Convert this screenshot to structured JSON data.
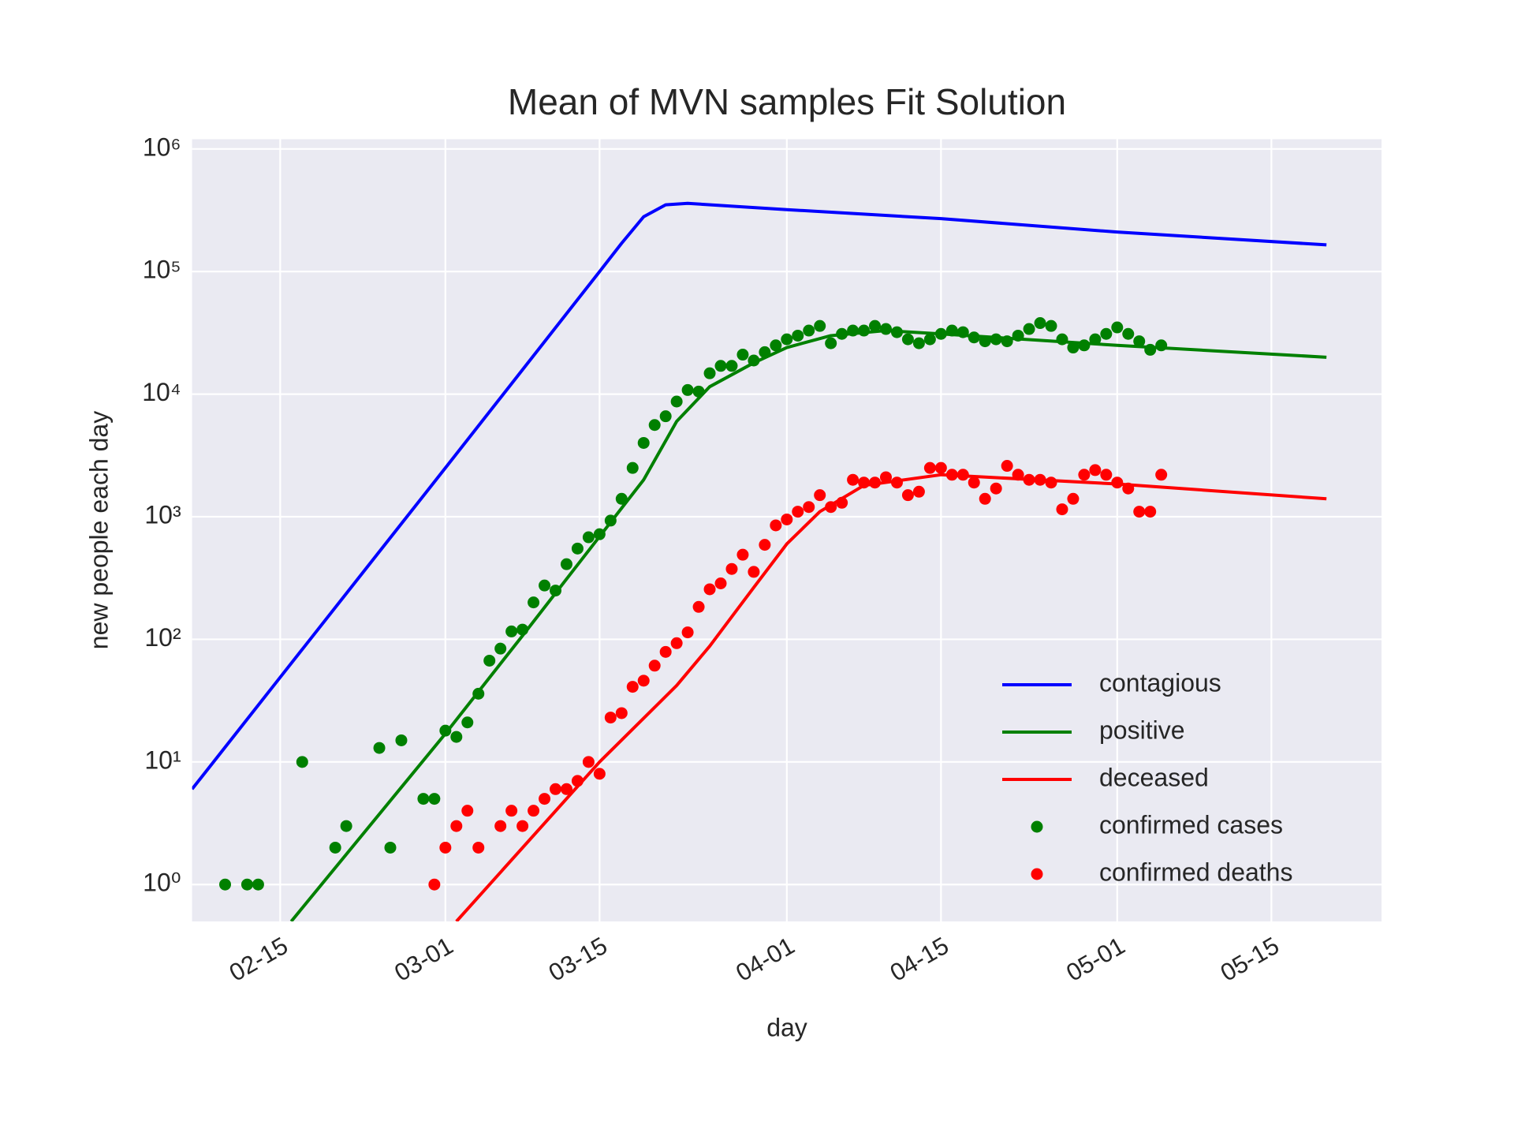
{
  "chart_data": {
    "type": "line",
    "title": "Mean of MVN samples Fit Solution",
    "x_label": "day",
    "y_label": "new people each day",
    "xlim": [
      "02-07",
      "05-25"
    ],
    "xticks": [
      "02-15",
      "03-01",
      "03-15",
      "04-01",
      "04-15",
      "05-01",
      "05-15"
    ],
    "ylim": [
      0.5,
      1200000
    ],
    "yscale": "log",
    "yticks": [
      {
        "value": 1,
        "label": "10⁰"
      },
      {
        "value": 10,
        "label": "10¹"
      },
      {
        "value": 100,
        "label": "10²"
      },
      {
        "value": 1000,
        "label": "10³"
      },
      {
        "value": 10000,
        "label": "10⁴"
      },
      {
        "value": 100000,
        "label": "10⁵"
      },
      {
        "value": 1000000,
        "label": "10⁶"
      }
    ],
    "grid": true,
    "legend": "lower right",
    "series": [
      {
        "name": "contagious",
        "type": "line",
        "color": "#0000ff",
        "x": [
          "02-07",
          "02-15",
          "03-01",
          "03-15",
          "03-17",
          "03-19",
          "03-21",
          "03-23",
          "04-01",
          "04-15",
          "05-01",
          "05-20"
        ],
        "values": [
          6,
          49,
          2500,
          100000,
          170000,
          280000,
          350000,
          360000,
          320000,
          270000,
          210000,
          165000
        ]
      },
      {
        "name": "positive",
        "type": "line",
        "color": "#008000",
        "x": [
          "02-16",
          "03-01",
          "03-08",
          "03-15",
          "03-19",
          "03-22",
          "03-25",
          "03-29",
          "04-01",
          "04-05",
          "04-10",
          "04-15",
          "05-01",
          "05-20"
        ],
        "values": [
          0.5,
          17,
          107,
          690,
          2000,
          6000,
          11500,
          18000,
          24000,
          30000,
          33000,
          31000,
          25000,
          20000
        ]
      },
      {
        "name": "deceased",
        "type": "line",
        "color": "#ff0000",
        "x": [
          "03-02",
          "03-15",
          "03-22",
          "03-25",
          "03-29",
          "04-01",
          "04-04",
          "04-08",
          "04-15",
          "05-01",
          "05-20"
        ],
        "values": [
          0.5,
          10,
          42,
          88,
          265,
          600,
          1100,
          1800,
          2200,
          1850,
          1400
        ]
      },
      {
        "name": "confirmed cases",
        "type": "scatter",
        "color": "#008000",
        "x": [
          "02-10",
          "02-12",
          "02-13",
          "02-17",
          "02-20",
          "02-21",
          "02-24",
          "02-25",
          "02-26",
          "02-28",
          "02-29",
          "03-01",
          "03-02",
          "03-03",
          "03-04",
          "03-05",
          "03-06",
          "03-07",
          "03-08",
          "03-09",
          "03-10",
          "03-11",
          "03-12",
          "03-13",
          "03-14",
          "03-15",
          "03-16",
          "03-17",
          "03-18",
          "03-19",
          "03-20",
          "03-21",
          "03-22",
          "03-23",
          "03-24",
          "03-25",
          "03-26",
          "03-27",
          "03-28",
          "03-29",
          "03-30",
          "03-31",
          "04-01",
          "04-02",
          "04-03",
          "04-04",
          "04-05",
          "04-06",
          "04-07",
          "04-08",
          "04-09",
          "04-10",
          "04-11",
          "04-12",
          "04-13",
          "04-14",
          "04-15",
          "04-16",
          "04-17",
          "04-18",
          "04-19",
          "04-20",
          "04-21",
          "04-22",
          "04-23",
          "04-24",
          "04-25",
          "04-26",
          "04-27",
          "04-28",
          "04-29",
          "04-30",
          "05-01",
          "05-02",
          "05-03",
          "05-04",
          "05-05"
        ],
        "values": [
          1,
          1,
          1,
          10,
          2,
          3,
          13,
          2,
          15,
          5,
          5,
          18,
          16,
          21,
          36,
          67,
          84,
          116,
          120,
          200,
          275,
          250,
          410,
          550,
          680,
          720,
          930,
          1400,
          2500,
          4000,
          5600,
          6600,
          8700,
          10800,
          10500,
          14800,
          17000,
          17000,
          21000,
          18800,
          22000,
          25000,
          28000,
          30000,
          33000,
          36000,
          26000,
          31000,
          33000,
          33000,
          36000,
          34000,
          32000,
          28000,
          26000,
          28000,
          31000,
          33000,
          32000,
          29000,
          27000,
          28000,
          27000,
          30000,
          34000,
          38000,
          36000,
          28000,
          24000,
          25000,
          28000,
          31000,
          35000,
          31000,
          27000,
          23000,
          25000
        ]
      },
      {
        "name": "confirmed deaths",
        "type": "scatter",
        "color": "#ff0000",
        "x": [
          "02-29",
          "03-01",
          "03-02",
          "03-03",
          "03-04",
          "03-06",
          "03-07",
          "03-08",
          "03-09",
          "03-10",
          "03-11",
          "03-12",
          "03-13",
          "03-14",
          "03-15",
          "03-16",
          "03-17",
          "03-18",
          "03-19",
          "03-20",
          "03-21",
          "03-22",
          "03-23",
          "03-24",
          "03-25",
          "03-26",
          "03-27",
          "03-28",
          "03-29",
          "03-30",
          "03-31",
          "04-01",
          "04-02",
          "04-03",
          "04-04",
          "04-05",
          "04-06",
          "04-07",
          "04-08",
          "04-09",
          "04-10",
          "04-11",
          "04-12",
          "04-13",
          "04-14",
          "04-15",
          "04-16",
          "04-17",
          "04-18",
          "04-19",
          "04-20",
          "04-21",
          "04-22",
          "04-23",
          "04-24",
          "04-25",
          "04-26",
          "04-27",
          "04-28",
          "04-29",
          "04-30",
          "05-01",
          "05-02",
          "05-03",
          "05-04",
          "05-05"
        ],
        "values": [
          1,
          2,
          3,
          4,
          2,
          3,
          4,
          3,
          4,
          5,
          6,
          6,
          7,
          10,
          8,
          23,
          25,
          41,
          46,
          61,
          79,
          93,
          114,
          184,
          256,
          286,
          375,
          490,
          355,
          590,
          850,
          950,
          1100,
          1200,
          1500,
          1200,
          1300,
          2000,
          1900,
          1900,
          2100,
          1900,
          1500,
          1600,
          2500,
          2500,
          2200,
          2200,
          1900,
          1400,
          1700,
          2600,
          2200,
          2000,
          2000,
          1900,
          1150,
          1400,
          2200,
          2400,
          2200,
          1900,
          1700,
          1100,
          1100,
          2200
        ]
      }
    ]
  }
}
